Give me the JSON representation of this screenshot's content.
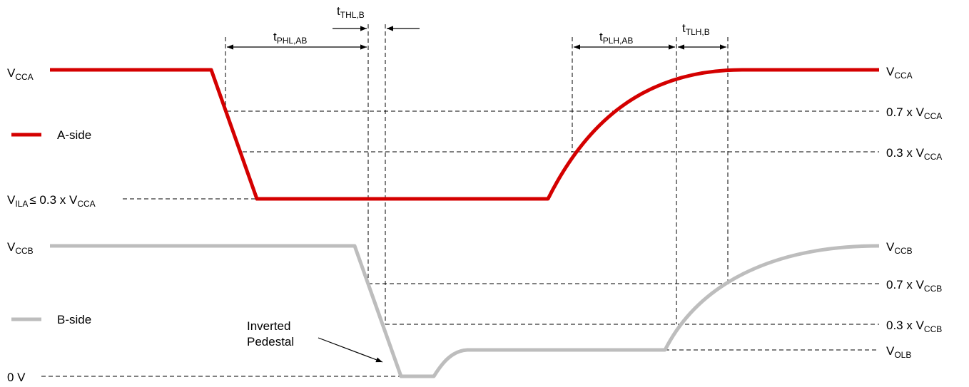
{
  "colors": {
    "a_side": "#d40000",
    "b_side": "#bdbdbd",
    "guide": "#000000"
  },
  "legend": {
    "a_side": "A-side",
    "b_side": "B-side"
  },
  "levels": {
    "vcca": {
      "main": "V",
      "sub": "CCA"
    },
    "vccb": {
      "main": "V",
      "sub": "CCB"
    },
    "zero": "0 V",
    "vila": {
      "main": "V",
      "sub": "ILA",
      "rest": "≤ 0.3 x V",
      "rest_sub": "CCA"
    },
    "a_07": {
      "main": "0.7 x V",
      "sub": "CCA"
    },
    "a_03": {
      "main": "0.3 x V",
      "sub": "CCA"
    },
    "b_07": {
      "main": "0.7 x V",
      "sub": "CCB"
    },
    "b_03": {
      "main": "0.3 x V",
      "sub": "CCB"
    },
    "volb": {
      "main": "V",
      "sub": "OLB"
    }
  },
  "timings": {
    "tphl": {
      "main": "t",
      "sub": "PHL,AB"
    },
    "tthl": {
      "main": "t",
      "sub": "THL,B"
    },
    "tplh": {
      "main": "t",
      "sub": "PLH,AB"
    },
    "ttlh": {
      "main": "t",
      "sub": "TLH,B"
    }
  },
  "annotation": {
    "line1": "Inverted",
    "line2": "Pedestal"
  }
}
